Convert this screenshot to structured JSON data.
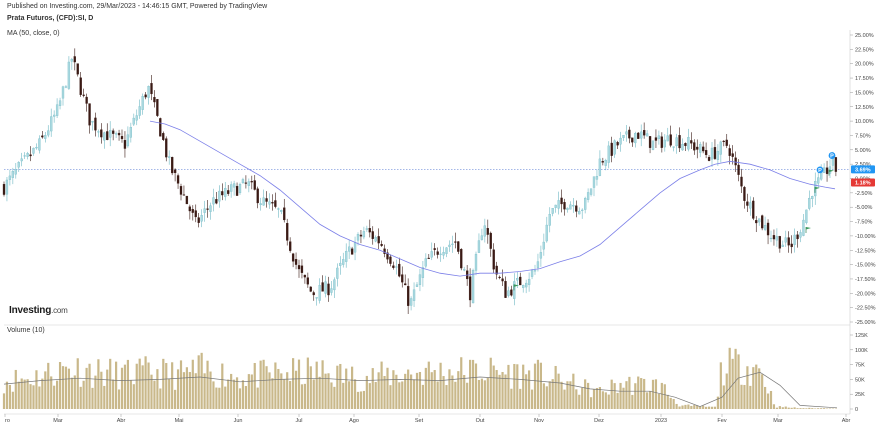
{
  "header": {
    "published": "Published on Investing.com, 29/Mar/2023 - 14:46:15 GMT, Powered by TradingView",
    "symbol": "Prata Futuros, (CFD):SI, D",
    "ma_label": "MA (50, close, 0)",
    "volume_label": "Volume (10)"
  },
  "logo": {
    "main": "Investing",
    "suffix": ".com"
  },
  "colors": {
    "up": "#a9d8df",
    "down": "#3a1a14",
    "ma": "#7b7fe8",
    "volume_bar": "#c9b88a",
    "volume_ma": "#777777",
    "blue_badge": "#2196f3",
    "red_badge": "#e53935"
  },
  "chart_data": [
    {
      "type": "candlestick",
      "title": "Prata Futuros, (CFD):SI, D",
      "y_axis_unit": "%",
      "ylim": [
        -25.0,
        25.0
      ],
      "y_ticks": [
        "25.00%",
        "22.50%",
        "20.00%",
        "17.50%",
        "15.00%",
        "12.50%",
        "10.00%",
        "7.50%",
        "5.00%",
        "2.50%",
        "0.00%",
        "-2.50%",
        "-5.00%",
        "-7.50%",
        "-10.00%",
        "-12.50%",
        "-15.00%",
        "-17.50%",
        "-20.00%",
        "-22.50%",
        "-25.00%"
      ],
      "x_ticks": [
        "ro",
        "Mar",
        "Abr",
        "Mai",
        "Jun",
        "Jul",
        "Ago",
        "Set",
        "Out",
        "Nov",
        "Dez",
        "2023",
        "Fev",
        "Mar",
        "Abr"
      ],
      "x_tick_days": [
        5,
        58,
        121,
        179,
        238,
        299,
        354,
        419,
        480,
        539,
        599,
        661,
        722,
        778,
        846
      ],
      "price_line_levels": [
        {
          "label": "3.69%",
          "value": 1.6,
          "color": "#2196f3"
        },
        {
          "label": "1.18%",
          "value": 0.7,
          "color": "#e53935"
        }
      ],
      "close_path": [
        [
          4,
          -1.5
        ],
        [
          20,
          2
        ],
        [
          40,
          6
        ],
        [
          58,
          12
        ],
        [
          72,
          21
        ],
        [
          90,
          10
        ],
        [
          104,
          8
        ],
        [
          125,
          6
        ],
        [
          148,
          16
        ],
        [
          158,
          10
        ],
        [
          170,
          2
        ],
        [
          184,
          -3
        ],
        [
          196,
          -8
        ],
        [
          212,
          -4
        ],
        [
          232,
          -2
        ],
        [
          248,
          -1
        ],
        [
          262,
          -4
        ],
        [
          280,
          -6
        ],
        [
          298,
          -16
        ],
        [
          312,
          -20
        ],
        [
          330,
          -19
        ],
        [
          348,
          -13
        ],
        [
          365,
          -9
        ],
        [
          380,
          -11
        ],
        [
          395,
          -15
        ],
        [
          410,
          -22
        ],
        [
          425,
          -15
        ],
        [
          440,
          -12
        ],
        [
          456,
          -11
        ],
        [
          470,
          -20
        ],
        [
          484,
          -7
        ],
        [
          495,
          -16
        ],
        [
          506,
          -20
        ],
        [
          520,
          -18
        ],
        [
          536,
          -16
        ],
        [
          550,
          -6
        ],
        [
          566,
          -4
        ],
        [
          584,
          -5
        ],
        [
          600,
          3
        ],
        [
          618,
          6
        ],
        [
          636,
          8
        ],
        [
          654,
          6
        ],
        [
          670,
          7
        ],
        [
          690,
          6
        ],
        [
          710,
          4
        ],
        [
          728,
          6
        ],
        [
          744,
          -3
        ],
        [
          758,
          -7
        ],
        [
          772,
          -10
        ],
        [
          790,
          -12
        ],
        [
          802,
          -8
        ],
        [
          812,
          -2
        ],
        [
          822,
          0
        ],
        [
          832,
          3
        ],
        [
          837,
          1.2
        ]
      ],
      "ma50_path": [
        [
          150,
          10
        ],
        [
          165,
          9.5
        ],
        [
          180,
          8.5
        ],
        [
          200,
          6.5
        ],
        [
          220,
          4.5
        ],
        [
          240,
          2.5
        ],
        [
          260,
          0.5
        ],
        [
          280,
          -2
        ],
        [
          300,
          -5
        ],
        [
          320,
          -8
        ],
        [
          340,
          -10
        ],
        [
          360,
          -11.5
        ],
        [
          380,
          -12.5
        ],
        [
          400,
          -14
        ],
        [
          420,
          -15.5
        ],
        [
          440,
          -16.5
        ],
        [
          460,
          -17
        ],
        [
          480,
          -16.5
        ],
        [
          500,
          -16.5
        ],
        [
          520,
          -16.2
        ],
        [
          540,
          -15.7
        ],
        [
          560,
          -14.5
        ],
        [
          580,
          -13.5
        ],
        [
          600,
          -11.5
        ],
        [
          620,
          -8.5
        ],
        [
          640,
          -5.5
        ],
        [
          660,
          -2.5
        ],
        [
          680,
          0
        ],
        [
          700,
          1.5
        ],
        [
          715,
          2.5
        ],
        [
          730,
          3
        ],
        [
          750,
          2.5
        ],
        [
          770,
          1.5
        ],
        [
          790,
          0
        ],
        [
          810,
          -1
        ],
        [
          825,
          -1.5
        ],
        [
          835,
          -1.8
        ]
      ],
      "markers": [
        {
          "kind": "flag",
          "x": 514,
          "value": -19.5
        },
        {
          "kind": "flag",
          "x": 806,
          "value": -9.5
        },
        {
          "kind": "flag",
          "x": 815,
          "value": -2.5
        },
        {
          "kind": "flag",
          "x": 829,
          "value": 0.5
        },
        {
          "kind": "P",
          "x": 820,
          "value": 1.5
        },
        {
          "kind": "P",
          "x": 832,
          "value": 4.0
        }
      ]
    },
    {
      "type": "bar",
      "title": "Volume (10)",
      "y_ticks": [
        "125K",
        "100K",
        "75K",
        "50K",
        "25K",
        "0"
      ],
      "ylim": [
        0,
        125000
      ],
      "level_path": [
        [
          4,
          48000
        ],
        [
          30,
          52000
        ],
        [
          70,
          70000
        ],
        [
          90,
          64000
        ],
        [
          120,
          58000
        ],
        [
          150,
          62000
        ],
        [
          180,
          58000
        ],
        [
          200,
          66000
        ],
        [
          240,
          54000
        ],
        [
          280,
          60000
        ],
        [
          320,
          62000
        ],
        [
          360,
          52000
        ],
        [
          420,
          62000
        ],
        [
          480,
          64000
        ],
        [
          540,
          58000
        ],
        [
          580,
          38000
        ],
        [
          600,
          28000
        ],
        [
          620,
          42000
        ],
        [
          660,
          40000
        ],
        [
          680,
          6000
        ],
        [
          715,
          3000
        ],
        [
          722,
          70000
        ],
        [
          740,
          74000
        ],
        [
          760,
          68000
        ],
        [
          776,
          4000
        ],
        [
          800,
          1500
        ],
        [
          837,
          1000
        ]
      ],
      "ma10_path": [
        [
          4,
          42000
        ],
        [
          40,
          48000
        ],
        [
          80,
          52000
        ],
        [
          120,
          48000
        ],
        [
          160,
          50000
        ],
        [
          200,
          54000
        ],
        [
          240,
          46000
        ],
        [
          280,
          50000
        ],
        [
          320,
          52000
        ],
        [
          360,
          48000
        ],
        [
          400,
          50000
        ],
        [
          440,
          48000
        ],
        [
          480,
          54000
        ],
        [
          520,
          50000
        ],
        [
          560,
          44000
        ],
        [
          590,
          34000
        ],
        [
          620,
          30000
        ],
        [
          650,
          30000
        ],
        [
          675,
          20000
        ],
        [
          700,
          4000
        ],
        [
          722,
          20000
        ],
        [
          738,
          52000
        ],
        [
          760,
          62000
        ],
        [
          780,
          40000
        ],
        [
          800,
          6000
        ],
        [
          837,
          2000
        ]
      ]
    }
  ]
}
